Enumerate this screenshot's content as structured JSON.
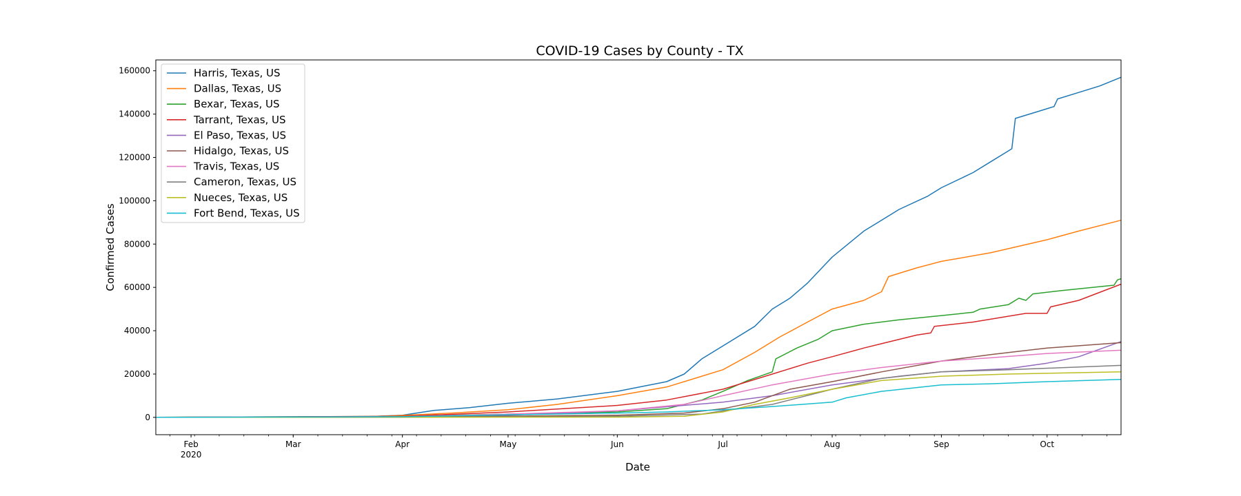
{
  "chart_data": {
    "type": "line",
    "title": "COVID-19 Cases by County - TX",
    "xlabel": "Date",
    "ylabel": "Confirmed Cases",
    "x_range": [
      "2020-01-22",
      "2020-10-22"
    ],
    "ylim": [
      -8000,
      165000
    ],
    "y_ticks": [
      0,
      20000,
      40000,
      60000,
      80000,
      100000,
      120000,
      140000,
      160000
    ],
    "x_ticks": [
      {
        "date": "2020-02-01",
        "label": "Feb",
        "sublabel": "2020"
      },
      {
        "date": "2020-03-01",
        "label": "Mar",
        "sublabel": ""
      },
      {
        "date": "2020-04-01",
        "label": "Apr",
        "sublabel": ""
      },
      {
        "date": "2020-05-01",
        "label": "May",
        "sublabel": ""
      },
      {
        "date": "2020-06-01",
        "label": "Jun",
        "sublabel": ""
      },
      {
        "date": "2020-07-01",
        "label": "Jul",
        "sublabel": ""
      },
      {
        "date": "2020-08-01",
        "label": "Aug",
        "sublabel": ""
      },
      {
        "date": "2020-09-01",
        "label": "Sep",
        "sublabel": ""
      },
      {
        "date": "2020-10-01",
        "label": "Oct",
        "sublabel": ""
      }
    ],
    "grid": false,
    "legend_position": "upper-left",
    "series": [
      {
        "name": "Harris, Texas, US",
        "color": "#1f77b4",
        "points": [
          [
            "2020-01-22",
            0
          ],
          [
            "2020-03-20",
            200
          ],
          [
            "2020-04-01",
            1000
          ],
          [
            "2020-04-10",
            3200
          ],
          [
            "2020-04-20",
            4500
          ],
          [
            "2020-05-01",
            6500
          ],
          [
            "2020-05-15",
            8500
          ],
          [
            "2020-06-01",
            12000
          ],
          [
            "2020-06-15",
            16500
          ],
          [
            "2020-06-20",
            20000
          ],
          [
            "2020-06-25",
            27000
          ],
          [
            "2020-07-01",
            33000
          ],
          [
            "2020-07-10",
            42000
          ],
          [
            "2020-07-15",
            50000
          ],
          [
            "2020-07-20",
            55000
          ],
          [
            "2020-07-25",
            62000
          ],
          [
            "2020-08-01",
            74000
          ],
          [
            "2020-08-10",
            86000
          ],
          [
            "2020-08-20",
            96000
          ],
          [
            "2020-08-28",
            102000
          ],
          [
            "2020-09-01",
            106000
          ],
          [
            "2020-09-10",
            113000
          ],
          [
            "2020-09-15",
            118000
          ],
          [
            "2020-09-20",
            123000
          ],
          [
            "2020-09-21",
            124000
          ],
          [
            "2020-09-22",
            138000
          ],
          [
            "2020-09-28",
            141000
          ],
          [
            "2020-10-03",
            143500
          ],
          [
            "2020-10-04",
            147000
          ],
          [
            "2020-10-10",
            150000
          ],
          [
            "2020-10-16",
            153000
          ],
          [
            "2020-10-22",
            157000
          ]
        ]
      },
      {
        "name": "Dallas, Texas, US",
        "color": "#ff7f0e",
        "points": [
          [
            "2020-01-22",
            0
          ],
          [
            "2020-03-20",
            200
          ],
          [
            "2020-04-01",
            900
          ],
          [
            "2020-04-15",
            2000
          ],
          [
            "2020-05-01",
            3500
          ],
          [
            "2020-05-15",
            6000
          ],
          [
            "2020-06-01",
            10000
          ],
          [
            "2020-06-15",
            14000
          ],
          [
            "2020-07-01",
            22000
          ],
          [
            "2020-07-10",
            30000
          ],
          [
            "2020-07-17",
            37000
          ],
          [
            "2020-07-25",
            44000
          ],
          [
            "2020-08-01",
            50000
          ],
          [
            "2020-08-10",
            54000
          ],
          [
            "2020-08-15",
            58000
          ],
          [
            "2020-08-17",
            65000
          ],
          [
            "2020-08-25",
            69000
          ],
          [
            "2020-09-01",
            72000
          ],
          [
            "2020-09-15",
            76000
          ],
          [
            "2020-10-01",
            82000
          ],
          [
            "2020-10-10",
            86000
          ],
          [
            "2020-10-22",
            91000
          ]
        ]
      },
      {
        "name": "Bexar, Texas, US",
        "color": "#2ca02c",
        "points": [
          [
            "2020-01-22",
            0
          ],
          [
            "2020-04-01",
            500
          ],
          [
            "2020-05-01",
            1500
          ],
          [
            "2020-06-01",
            2500
          ],
          [
            "2020-06-15",
            4000
          ],
          [
            "2020-06-25",
            8000
          ],
          [
            "2020-07-01",
            12000
          ],
          [
            "2020-07-08",
            17000
          ],
          [
            "2020-07-15",
            21000
          ],
          [
            "2020-07-16",
            27000
          ],
          [
            "2020-07-22",
            32000
          ],
          [
            "2020-07-28",
            36000
          ],
          [
            "2020-08-01",
            40000
          ],
          [
            "2020-08-10",
            43000
          ],
          [
            "2020-08-20",
            45000
          ],
          [
            "2020-09-01",
            47000
          ],
          [
            "2020-09-10",
            48500
          ],
          [
            "2020-09-12",
            50000
          ],
          [
            "2020-09-20",
            52000
          ],
          [
            "2020-09-23",
            55000
          ],
          [
            "2020-09-25",
            54000
          ],
          [
            "2020-09-27",
            57000
          ],
          [
            "2020-10-05",
            58500
          ],
          [
            "2020-10-20",
            61000
          ],
          [
            "2020-10-21",
            63500
          ],
          [
            "2020-10-22",
            64000
          ]
        ]
      },
      {
        "name": "Tarrant, Texas, US",
        "color": "#d62728",
        "points": [
          [
            "2020-01-22",
            0
          ],
          [
            "2020-04-01",
            500
          ],
          [
            "2020-05-01",
            2500
          ],
          [
            "2020-06-01",
            5500
          ],
          [
            "2020-06-15",
            8000
          ],
          [
            "2020-07-01",
            13000
          ],
          [
            "2020-07-15",
            20000
          ],
          [
            "2020-07-25",
            25000
          ],
          [
            "2020-08-01",
            28000
          ],
          [
            "2020-08-10",
            32000
          ],
          [
            "2020-08-15",
            34000
          ],
          [
            "2020-08-25",
            38000
          ],
          [
            "2020-08-29",
            39000
          ],
          [
            "2020-08-30",
            42000
          ],
          [
            "2020-09-10",
            44000
          ],
          [
            "2020-09-25",
            48000
          ],
          [
            "2020-10-01",
            48000
          ],
          [
            "2020-10-02",
            51000
          ],
          [
            "2020-10-10",
            54000
          ],
          [
            "2020-10-22",
            61500
          ]
        ]
      },
      {
        "name": "El Paso, Texas, US",
        "color": "#9467bd",
        "points": [
          [
            "2020-01-22",
            0
          ],
          [
            "2020-04-01",
            200
          ],
          [
            "2020-05-01",
            1000
          ],
          [
            "2020-06-01",
            3000
          ],
          [
            "2020-07-01",
            7000
          ],
          [
            "2020-07-15",
            10000
          ],
          [
            "2020-08-01",
            15000
          ],
          [
            "2020-08-20",
            19000
          ],
          [
            "2020-09-01",
            21000
          ],
          [
            "2020-09-20",
            22500
          ],
          [
            "2020-10-01",
            25000
          ],
          [
            "2020-10-10",
            28000
          ],
          [
            "2020-10-22",
            35000
          ]
        ]
      },
      {
        "name": "Hidalgo, Texas, US",
        "color": "#8c564b",
        "points": [
          [
            "2020-01-22",
            0
          ],
          [
            "2020-04-01",
            100
          ],
          [
            "2020-06-01",
            1000
          ],
          [
            "2020-06-20",
            2000
          ],
          [
            "2020-07-01",
            4000
          ],
          [
            "2020-07-10",
            7000
          ],
          [
            "2020-07-20",
            13000
          ],
          [
            "2020-08-01",
            16500
          ],
          [
            "2020-08-15",
            21000
          ],
          [
            "2020-09-01",
            26000
          ],
          [
            "2020-09-15",
            29000
          ],
          [
            "2020-10-01",
            32000
          ],
          [
            "2020-10-22",
            34500
          ]
        ]
      },
      {
        "name": "Travis, Texas, US",
        "color": "#e377c2",
        "points": [
          [
            "2020-01-22",
            0
          ],
          [
            "2020-04-01",
            300
          ],
          [
            "2020-05-01",
            1500
          ],
          [
            "2020-06-01",
            3000
          ],
          [
            "2020-06-20",
            6000
          ],
          [
            "2020-07-01",
            10000
          ],
          [
            "2020-07-15",
            15000
          ],
          [
            "2020-08-01",
            20000
          ],
          [
            "2020-08-15",
            23000
          ],
          [
            "2020-09-01",
            26000
          ],
          [
            "2020-09-15",
            27500
          ],
          [
            "2020-10-01",
            29500
          ],
          [
            "2020-10-22",
            31000
          ]
        ]
      },
      {
        "name": "Cameron, Texas, US",
        "color": "#7f7f7f",
        "points": [
          [
            "2020-01-22",
            0
          ],
          [
            "2020-04-01",
            100
          ],
          [
            "2020-06-01",
            500
          ],
          [
            "2020-06-25",
            1500
          ],
          [
            "2020-07-01",
            3000
          ],
          [
            "2020-07-15",
            6000
          ],
          [
            "2020-08-01",
            13000
          ],
          [
            "2020-08-15",
            18000
          ],
          [
            "2020-09-01",
            21000
          ],
          [
            "2020-09-20",
            22000
          ],
          [
            "2020-10-22",
            24000
          ]
        ]
      },
      {
        "name": "Nueces, Texas, US",
        "color": "#bcbd22",
        "points": [
          [
            "2020-01-22",
            0
          ],
          [
            "2020-06-01",
            100
          ],
          [
            "2020-06-20",
            500
          ],
          [
            "2020-07-01",
            2500
          ],
          [
            "2020-07-10",
            6000
          ],
          [
            "2020-07-20",
            9000
          ],
          [
            "2020-08-01",
            13000
          ],
          [
            "2020-08-15",
            17000
          ],
          [
            "2020-09-01",
            19000
          ],
          [
            "2020-09-20",
            20000
          ],
          [
            "2020-10-22",
            21000
          ]
        ]
      },
      {
        "name": "Fort Bend, Texas, US",
        "color": "#17becf",
        "points": [
          [
            "2020-01-22",
            0
          ],
          [
            "2020-04-01",
            300
          ],
          [
            "2020-05-01",
            1200
          ],
          [
            "2020-06-01",
            2000
          ],
          [
            "2020-06-15",
            2500
          ],
          [
            "2020-07-01",
            3500
          ],
          [
            "2020-07-15",
            5000
          ],
          [
            "2020-08-01",
            7000
          ],
          [
            "2020-08-05",
            9000
          ],
          [
            "2020-08-15",
            12000
          ],
          [
            "2020-09-01",
            15000
          ],
          [
            "2020-09-15",
            15500
          ],
          [
            "2020-10-01",
            16500
          ],
          [
            "2020-10-22",
            17500
          ]
        ]
      }
    ]
  }
}
